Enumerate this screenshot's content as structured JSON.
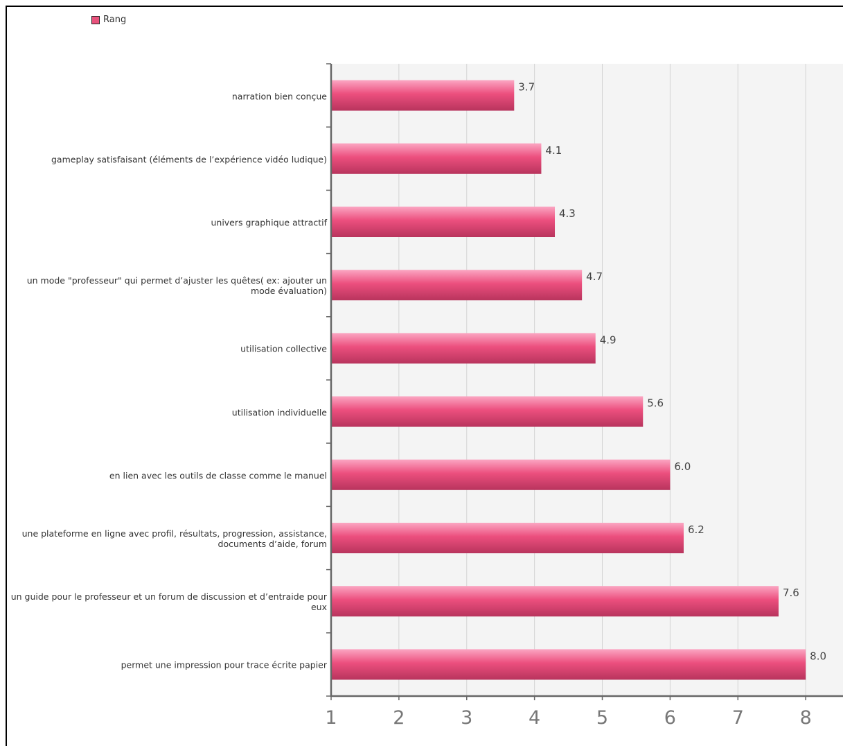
{
  "colors": {
    "bar_top": "#fba6c2",
    "bar_mid": "#ec4f7e",
    "bar_bottom": "#b8345d",
    "plot_bg": "#f4f4f4",
    "grid": "#d3d3d3",
    "axis": "#666666"
  },
  "chart_data": {
    "type": "bar",
    "orientation": "horizontal",
    "legend": [
      "Rang"
    ],
    "legend_position": "top-left",
    "grid": true,
    "xlim": [
      1,
      8.55
    ],
    "xticks": [
      1,
      2,
      3,
      4,
      5,
      6,
      7,
      8
    ],
    "categories": [
      "narration bien conçue",
      "gameplay satisfaisant (éléments de l’expérience vidéo ludique)",
      "univers graphique attractif",
      "un mode \"professeur\" qui permet d’ajuster les quêtes( ex: ajouter un mode évaluation)",
      "utilisation collective",
      "utilisation individuelle",
      "en lien avec les outils de classe comme le manuel",
      "une plateforme en ligne avec profil, résultats, progression, assistance, documents d’aide, forum",
      "un guide pour le professeur et un forum de discussion et d’entraide pour eux",
      "permet une impression pour trace écrite papier"
    ],
    "series": [
      {
        "name": "Rang",
        "values": [
          3.7,
          4.1,
          4.3,
          4.7,
          4.9,
          5.6,
          6.0,
          6.2,
          7.6,
          8.0
        ],
        "labels": [
          "3.7",
          "4.1",
          "4.3",
          "4.7",
          "4.9",
          "5.6",
          "6.0",
          "6.2",
          "7.6",
          "8.0"
        ]
      }
    ]
  }
}
